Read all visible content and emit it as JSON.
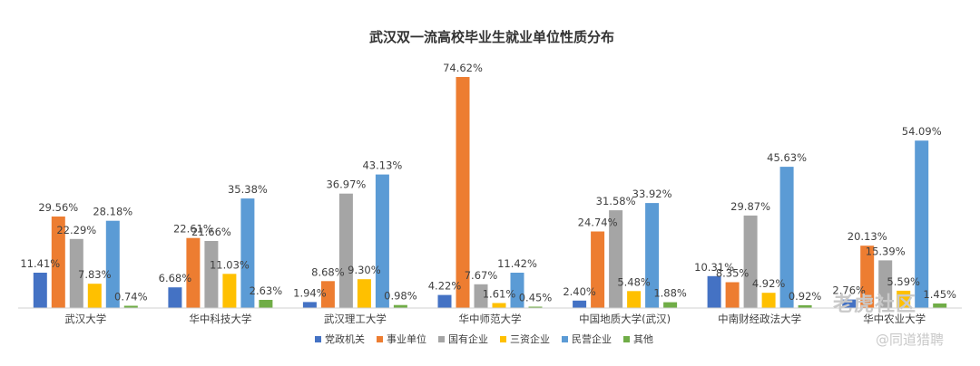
{
  "chart_data": {
    "type": "bar",
    "title": "武汉双一流高校毕业生就业单位性质分布",
    "categories": [
      "武汉大学",
      "华中科技大学",
      "武汉理工大学",
      "华中师范大学",
      "中国地质大学(武汉)",
      "中南财经政法大学",
      "华中农业大学"
    ],
    "series": [
      {
        "name": "党政机关",
        "color": "#4472C4",
        "values": [
          11.41,
          6.68,
          1.94,
          4.22,
          2.4,
          10.31,
          2.76
        ],
        "labels": [
          "11.41%",
          "6.68%",
          "1.94%",
          "4.22%",
          "2.40%",
          "10.31%",
          "2.76%"
        ]
      },
      {
        "name": "事业单位",
        "color": "#ED7D31",
        "values": [
          29.56,
          22.61,
          8.68,
          74.62,
          24.74,
          8.35,
          20.13
        ],
        "labels": [
          "29.56%",
          "22.61%",
          "8.68%",
          "74.62%",
          "24.74%",
          "8.35%",
          "20.13%"
        ]
      },
      {
        "name": "国有企业",
        "color": "#A5A5A5",
        "values": [
          22.29,
          21.66,
          36.97,
          7.67,
          31.58,
          29.87,
          15.39
        ],
        "labels": [
          "22.29%",
          "21.66%",
          "36.97%",
          "7.67%",
          "31.58%",
          "29.87%",
          "15.39%"
        ]
      },
      {
        "name": "三资企业",
        "color": "#FFC000",
        "values": [
          7.83,
          11.03,
          9.3,
          1.61,
          5.48,
          4.92,
          5.59
        ],
        "labels": [
          "7.83%",
          "11.03%",
          "9.30%",
          "1.61%",
          "5.48%",
          "4.92%",
          "5.59%"
        ]
      },
      {
        "name": "民营企业",
        "color": "#5B9BD5",
        "values": [
          28.18,
          35.38,
          43.13,
          11.42,
          33.92,
          45.63,
          54.09
        ],
        "labels": [
          "28.18%",
          "35.38%",
          "43.13%",
          "11.42%",
          "33.92%",
          "45.63%",
          "54.09%"
        ]
      },
      {
        "name": "其他",
        "color": "#70AD47",
        "values": [
          0.74,
          2.63,
          0.98,
          0.45,
          1.88,
          0.92,
          1.45
        ],
        "labels": [
          "0.74%",
          "2.63%",
          "0.98%",
          "0.45%",
          "1.88%",
          "0.92%",
          "1.45%"
        ]
      }
    ],
    "ylim": [
      0,
      80
    ],
    "grid": false,
    "legend_position": "bottom"
  },
  "watermark": {
    "logo_text": "老虎社区",
    "sub_text": "@同道猎聘"
  }
}
